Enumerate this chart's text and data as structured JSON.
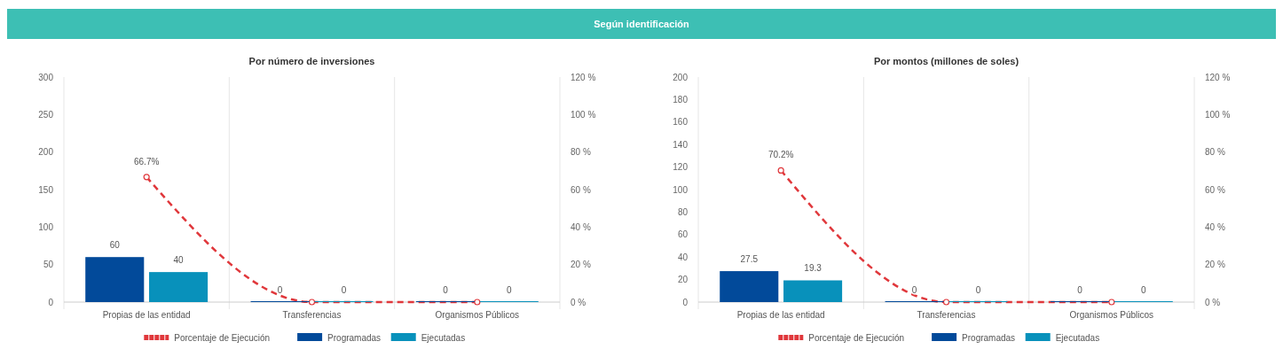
{
  "chart_data": [
    {
      "type": "other",
      "title": "Según identificación",
      "color": "#3dbfb4"
    },
    {
      "type": "bar",
      "title": "Por número de inversiones",
      "categories": [
        "Propias de las entidad",
        "Transferencias",
        "Organismos Públicos"
      ],
      "ylim": [
        0,
        300
      ],
      "yticks": [
        0,
        50,
        100,
        150,
        200,
        250,
        300
      ],
      "y2lim": [
        0,
        120
      ],
      "y2ticks": [
        {
          "value": 0,
          "label": "0 %"
        },
        {
          "value": 20,
          "label": "20 %"
        },
        {
          "value": 40,
          "label": "40 %"
        },
        {
          "value": 60,
          "label": "60 %"
        },
        {
          "value": 80,
          "label": "80 %"
        },
        {
          "value": 100,
          "label": "100 %"
        },
        {
          "value": 120,
          "label": "120 %"
        }
      ],
      "grid": "x",
      "legend": "bottom",
      "series": [
        {
          "name": "Porcentaje de Ejecución",
          "type": "line",
          "axis": "y2",
          "color": "#e0373b",
          "line_style": "dashed",
          "marker": "circle",
          "values": [
            66.7,
            0,
            0
          ],
          "value_labels": [
            "66.7%",
            null,
            null
          ]
        },
        {
          "name": "Programadas",
          "type": "bar",
          "color": "#024a9a",
          "values": [
            60,
            0,
            0
          ],
          "value_labels": [
            "60",
            "0",
            "0"
          ]
        },
        {
          "name": "Ejecutadas",
          "type": "bar",
          "color": "#0891bb",
          "values": [
            40,
            0,
            0
          ],
          "value_labels": [
            "40",
            "0",
            "0"
          ]
        }
      ]
    },
    {
      "type": "bar",
      "title": "Por montos (millones de soles)",
      "categories": [
        "Propias de las entidad",
        "Transferencias",
        "Organismos Públicos"
      ],
      "ylim": [
        0,
        200
      ],
      "yticks": [
        0,
        20,
        40,
        60,
        80,
        100,
        120,
        140,
        160,
        180,
        200
      ],
      "y2lim": [
        0,
        120
      ],
      "y2ticks": [
        {
          "value": 0,
          "label": "0 %"
        },
        {
          "value": 20,
          "label": "20 %"
        },
        {
          "value": 40,
          "label": "40 %"
        },
        {
          "value": 60,
          "label": "60 %"
        },
        {
          "value": 80,
          "label": "80 %"
        },
        {
          "value": 100,
          "label": "100 %"
        },
        {
          "value": 120,
          "label": "120 %"
        }
      ],
      "grid": "x",
      "legend": "bottom",
      "series": [
        {
          "name": "Porcentaje de Ejecución",
          "type": "line",
          "axis": "y2",
          "color": "#e0373b",
          "line_style": "dashed",
          "marker": "circle",
          "values": [
            70.2,
            0,
            0
          ],
          "value_labels": [
            "70.2%",
            null,
            null
          ]
        },
        {
          "name": "Programadas",
          "type": "bar",
          "color": "#024a9a",
          "values": [
            27.5,
            0,
            0
          ],
          "value_labels": [
            "27.5",
            "0",
            "0"
          ]
        },
        {
          "name": "Ejecutadas",
          "type": "bar",
          "color": "#0891bb",
          "values": [
            19.3,
            0,
            0
          ],
          "value_labels": [
            "19.3",
            "0",
            "0"
          ]
        }
      ]
    }
  ]
}
